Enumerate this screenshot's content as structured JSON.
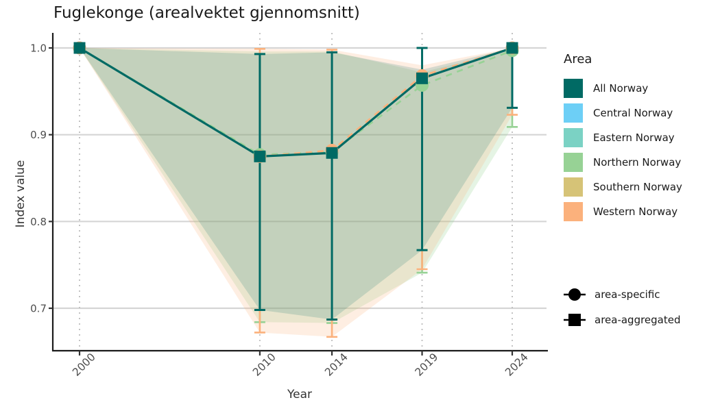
{
  "chart_data": {
    "type": "line",
    "title": "Fuglekonge (arealvektet gjennomsnitt)",
    "xlabel": "Year",
    "ylabel": "Index value",
    "x": [
      2000,
      2010,
      2014,
      2019,
      2024
    ],
    "y_ticks": [
      1.0,
      0.9,
      0.8,
      0.7
    ],
    "ylim": [
      0.651,
      1.017
    ],
    "xlim": [
      1998.5,
      2025.9
    ],
    "grid": {
      "h_color": "#d5d5d5",
      "v_color": "#c2c2c2",
      "h_style": "solid",
      "v_style": "dotted"
    },
    "series": [
      {
        "name": "Northern Norway",
        "role": "area-specific",
        "marker": "circle",
        "line": "dashed",
        "color": "#97D295",
        "band_opacity": 0.25,
        "values": [
          1.0,
          0.877,
          0.88,
          0.957,
          0.997
        ],
        "ci_lower": [
          1.0,
          0.684,
          0.683,
          0.741,
          0.909
        ],
        "ci_upper": [
          1.0,
          0.993,
          0.995,
          1.0,
          0.998
        ],
        "band_lower": [
          1.0,
          0.684,
          0.683,
          0.741,
          0.909
        ],
        "band_upper": [
          1.0,
          0.996,
          0.996,
          0.972,
          0.998
        ]
      },
      {
        "name": "Western Norway",
        "role": "area-specific",
        "marker": "circle",
        "line": "dashed",
        "color": "#FBB17C",
        "band_opacity": 0.22,
        "values": [
          1.0,
          0.875,
          0.882,
          0.968,
          1.0
        ],
        "ci_lower": [
          1.0,
          0.672,
          0.667,
          0.745,
          0.923
        ],
        "ci_upper": [
          1.0,
          0.999,
          0.998,
          1.0,
          1.0
        ],
        "band_lower": [
          1.0,
          0.672,
          0.667,
          0.745,
          0.923
        ],
        "band_upper": [
          1.0,
          0.999,
          0.998,
          0.98,
          1.0
        ]
      },
      {
        "name": "All Norway",
        "role": "area-aggregated",
        "marker": "square",
        "line": "solid",
        "color": "#006A64",
        "band_opacity": 0.16,
        "values": [
          1.0,
          0.875,
          0.879,
          0.965,
          1.0
        ],
        "ci_lower": [
          1.0,
          0.698,
          0.687,
          0.767,
          0.931
        ],
        "ci_upper": [
          1.0,
          0.993,
          0.995,
          1.0,
          1.0
        ],
        "band_lower": [
          1.0,
          0.698,
          0.687,
          0.767,
          0.931
        ],
        "band_upper": [
          1.0,
          0.993,
          0.995,
          0.975,
          1.0
        ]
      }
    ]
  },
  "area_legend": {
    "title": "Area",
    "items": [
      {
        "label": "All Norway",
        "color": "#006A64"
      },
      {
        "label": "Central Norway",
        "color": "#6DCFF6"
      },
      {
        "label": "Eastern Norway",
        "color": "#7BD2C4"
      },
      {
        "label": "Northern Norway",
        "color": "#97D295"
      },
      {
        "label": "Southern Norway",
        "color": "#D6C377"
      },
      {
        "label": "Western Norway",
        "color": "#FBB17C"
      }
    ]
  },
  "shape_legend": {
    "items": [
      {
        "label": "area-specific",
        "shape": "circle"
      },
      {
        "label": "area-aggregated",
        "shape": "square"
      }
    ]
  }
}
